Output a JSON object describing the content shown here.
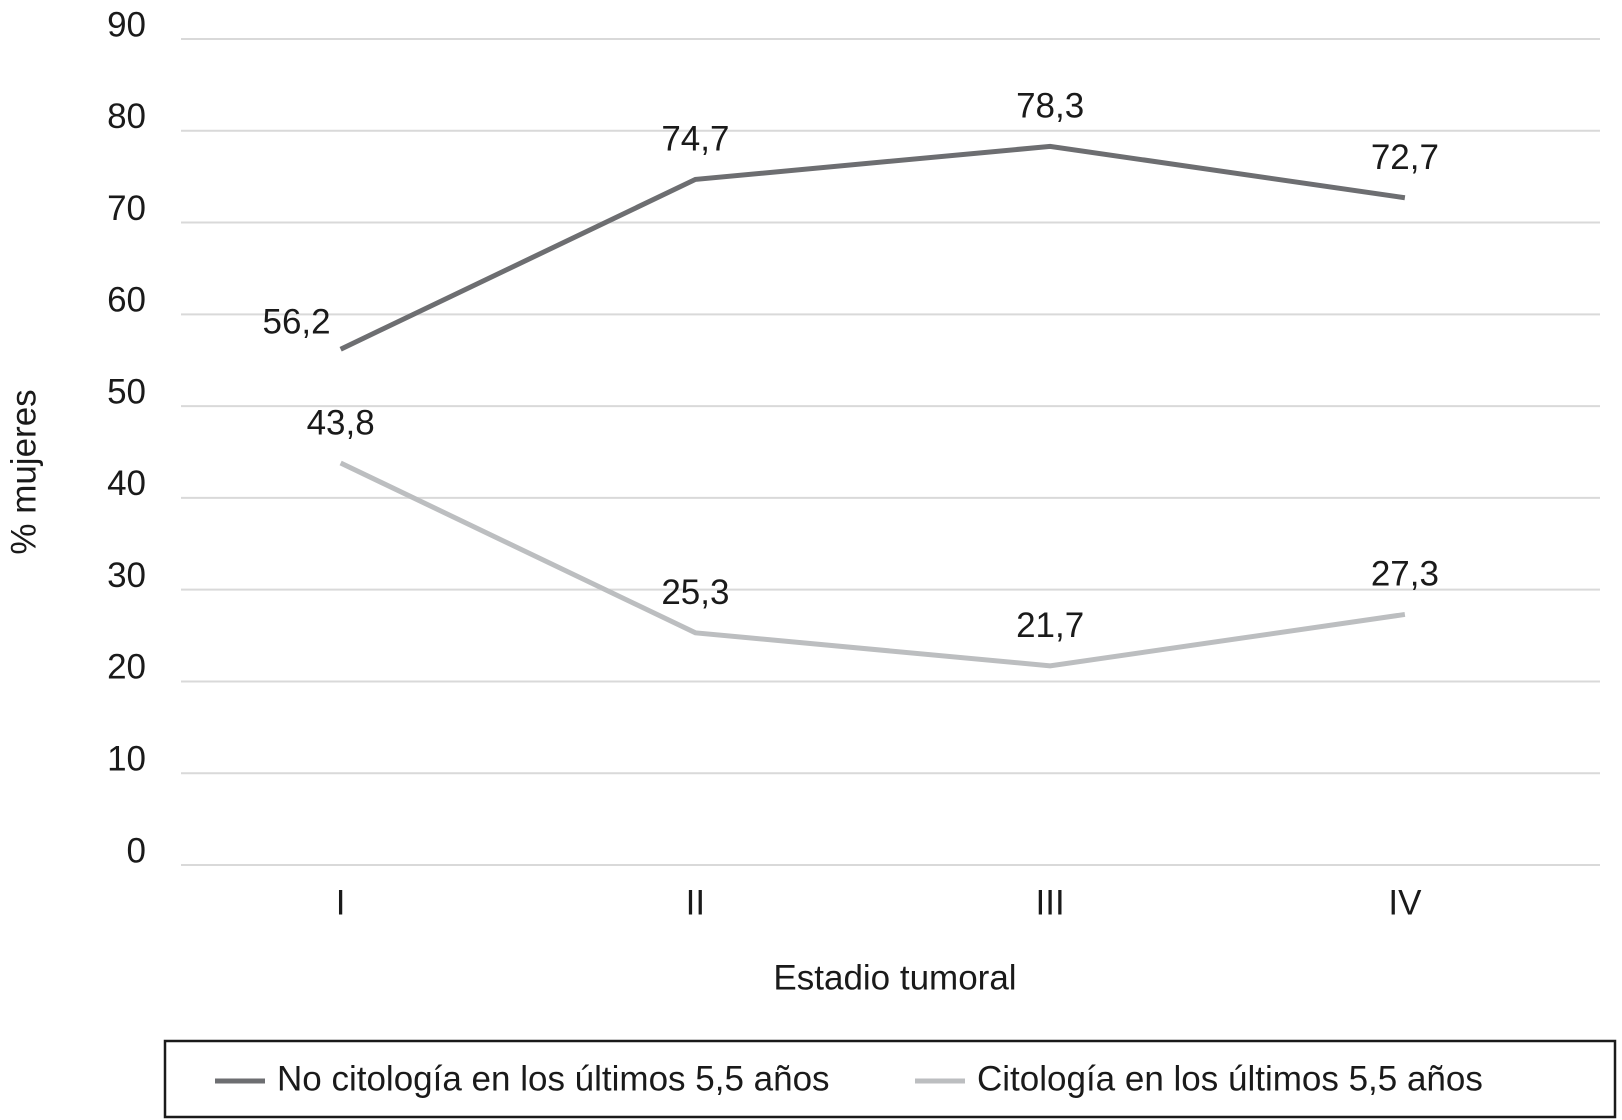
{
  "chart_data": {
    "type": "line",
    "x_label": "Estadio tumoral",
    "y_label": "% mujeres",
    "categories": [
      "I",
      "II",
      "III",
      "IV"
    ],
    "series": [
      {
        "name": "No citología en los últimos 5,5 años",
        "color": "#6d6e71",
        "values": [
          56.2,
          74.7,
          78.3,
          72.7
        ],
        "value_labels": [
          "56,2",
          "74,7",
          "78,3",
          "72,7"
        ]
      },
      {
        "name": "Citología en los últimos 5,5 años",
        "color": "#bcbec0",
        "values": [
          43.8,
          25.3,
          21.7,
          27.3
        ],
        "value_labels": [
          "43,8",
          "25,3",
          "21,7",
          "27,3"
        ]
      }
    ],
    "ylim": [
      0,
      90
    ],
    "yticks": [
      0,
      10,
      20,
      30,
      40,
      50,
      60,
      70,
      80,
      90
    ],
    "grid": true,
    "legend": "bottom"
  }
}
